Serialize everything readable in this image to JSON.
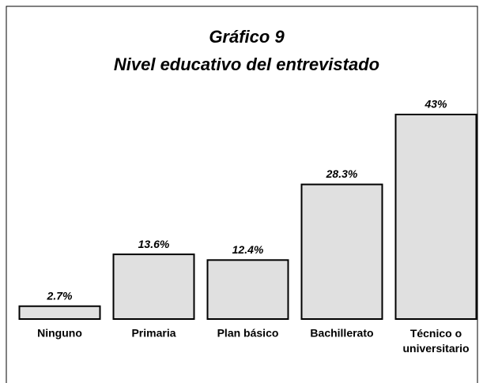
{
  "chart_data": {
    "type": "bar",
    "title": "Gráfico 9",
    "subtitle": "Nivel educativo del entrevistado",
    "categories": [
      "Ninguno",
      "Primaria",
      "Plan básico",
      "Bachillerato",
      "Técnico o universitario"
    ],
    "values": [
      2.7,
      13.6,
      12.4,
      28.3,
      43
    ],
    "value_labels": [
      "2.7%",
      "13.6%",
      "12.4%",
      "28.3%",
      "43%"
    ],
    "color": "#e0e0e0"
  }
}
